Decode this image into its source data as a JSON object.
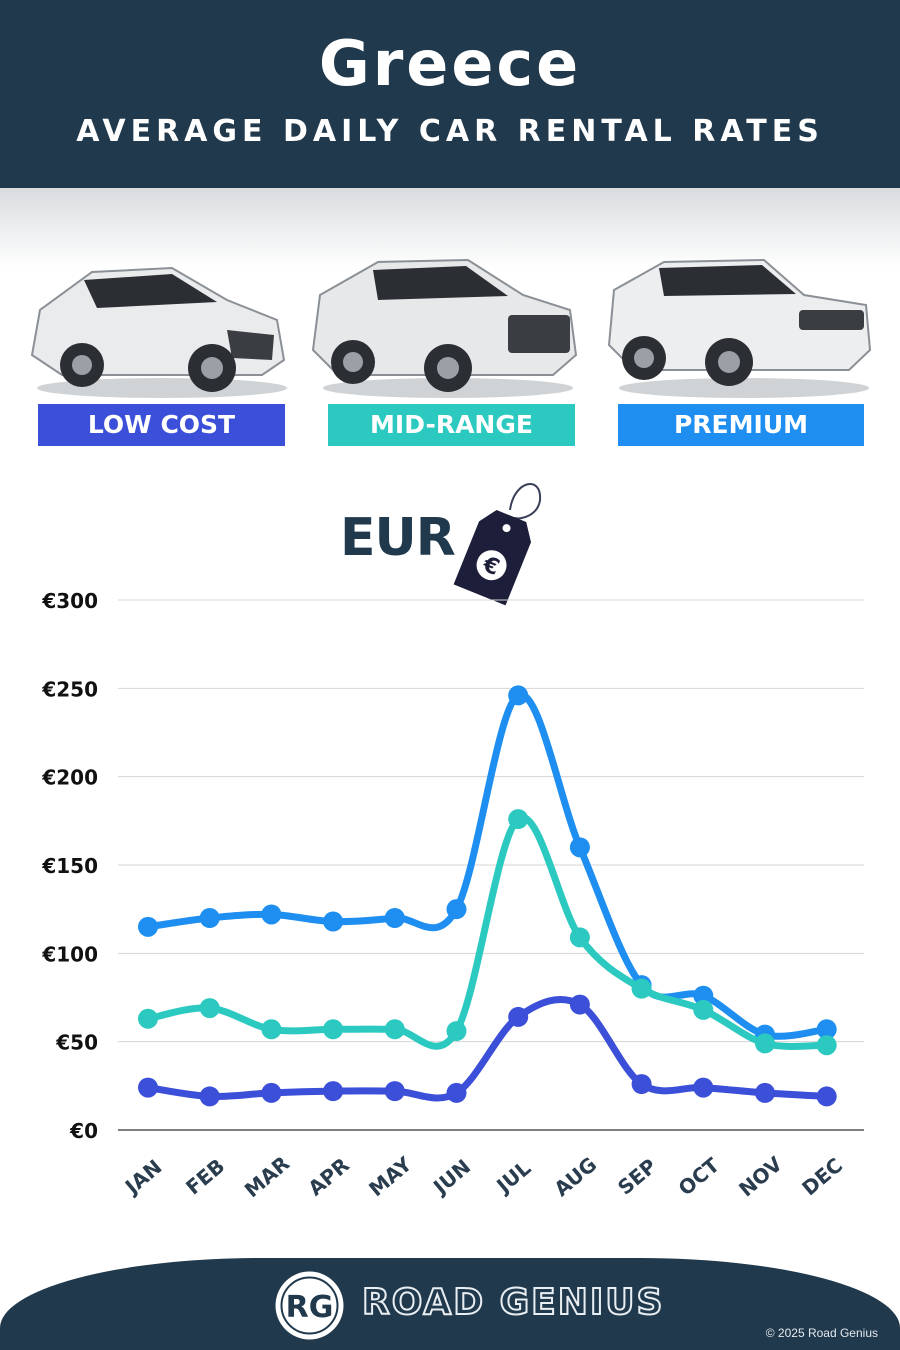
{
  "header": {
    "title": "Greece",
    "subtitle": "AVERAGE DAILY CAR RENTAL RATES"
  },
  "categories": [
    {
      "label": "LOW COST",
      "color": "#3b4fd8"
    },
    {
      "label": "MID-RANGE",
      "color": "#2cc9c0"
    },
    {
      "label": "PREMIUM",
      "color": "#1e8ff0"
    }
  ],
  "currency": {
    "label": "EUR",
    "icon": "euro-price-tag-icon"
  },
  "chart_data": {
    "type": "line",
    "x": [
      "JAN",
      "FEB",
      "MAR",
      "APR",
      "MAY",
      "JUN",
      "JUL",
      "AUG",
      "SEP",
      "OCT",
      "NOV",
      "DEC"
    ],
    "ylim": [
      0,
      300
    ],
    "yticks": [
      "€0",
      "€50",
      "€100",
      "€150",
      "€200",
      "€250",
      "€300"
    ],
    "grid": true,
    "series": [
      {
        "name": "PREMIUM",
        "color": "#1e8ff0",
        "values": [
          115,
          120,
          122,
          118,
          120,
          125,
          246,
          160,
          82,
          76,
          54,
          57
        ]
      },
      {
        "name": "MID-RANGE",
        "color": "#2cc9c0",
        "values": [
          63,
          69,
          57,
          57,
          57,
          56,
          176,
          109,
          80,
          68,
          49,
          48
        ]
      },
      {
        "name": "LOW COST",
        "color": "#3b4fd8",
        "values": [
          24,
          19,
          21,
          22,
          22,
          21,
          64,
          71,
          26,
          24,
          21,
          19
        ]
      }
    ]
  },
  "footer": {
    "logo_text": "RG",
    "brand": "ROAD GENIUS",
    "copyright": "© 2025 Road Genius"
  }
}
